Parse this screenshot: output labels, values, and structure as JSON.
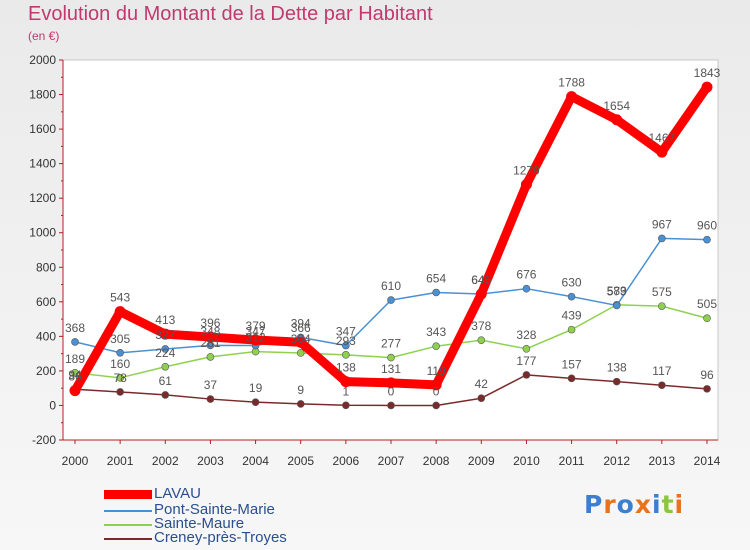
{
  "chart_data": {
    "type": "line",
    "title": "Evolution du Montant de la Dette par Habitant",
    "unit_label": "(en €)",
    "x": [
      "2000",
      "2001",
      "2002",
      "2003",
      "2004",
      "2005",
      "2006",
      "2007",
      "2008",
      "2009",
      "2010",
      "2011",
      "2012",
      "2013",
      "2014"
    ],
    "ylim": [
      -200,
      2000
    ],
    "yticks": [
      -200,
      0,
      200,
      400,
      600,
      800,
      1000,
      1200,
      1400,
      1600,
      1800,
      2000
    ],
    "grid": false,
    "legend_position": "bottom-left",
    "series": [
      {
        "name": "Creney-près-Troyes",
        "color": "#7a2a2a",
        "values": [
          94,
          78,
          61,
          37,
          19,
          9,
          1,
          0,
          0,
          42,
          177,
          157,
          138,
          117,
          96
        ]
      },
      {
        "name": "Sainte-Maure",
        "color": "#8fd14f",
        "values": [
          189,
          160,
          224,
          281,
          312,
          304,
          293,
          277,
          343,
          378,
          328,
          439,
          583,
          575,
          505
        ]
      },
      {
        "name": "Pont-Sainte-Marie",
        "color": "#4a90d4",
        "values": [
          368,
          305,
          327,
          348,
          347,
          394,
          347,
          610,
          654,
          645,
          676,
          630,
          579,
          967,
          960
        ]
      },
      {
        "name": "LAVAU",
        "color": "#ff0000",
        "values": [
          86,
          543,
          413,
          396,
          379,
          366,
          138,
          131,
          119,
          645,
          1279,
          1788,
          1654,
          1467,
          1843
        ]
      }
    ]
  },
  "legend": {
    "items": [
      {
        "label": "LAVAU",
        "color": "#ff0000"
      },
      {
        "label": "Pont-Sainte-Marie",
        "color": "#4a90d4"
      },
      {
        "label": "Sainte-Maure",
        "color": "#8fd14f"
      },
      {
        "label": "Creney-près-Troyes",
        "color": "#7a2a2a"
      }
    ]
  },
  "logo": {
    "letters": [
      "P",
      "r",
      "o",
      "x",
      "i",
      "t",
      "i"
    ],
    "colors": [
      "#3a7fd0",
      "#e8731a",
      "#3a7fd0",
      "#e8731a",
      "#3a7fd0",
      "#8cc63f",
      "#e8731a"
    ]
  }
}
